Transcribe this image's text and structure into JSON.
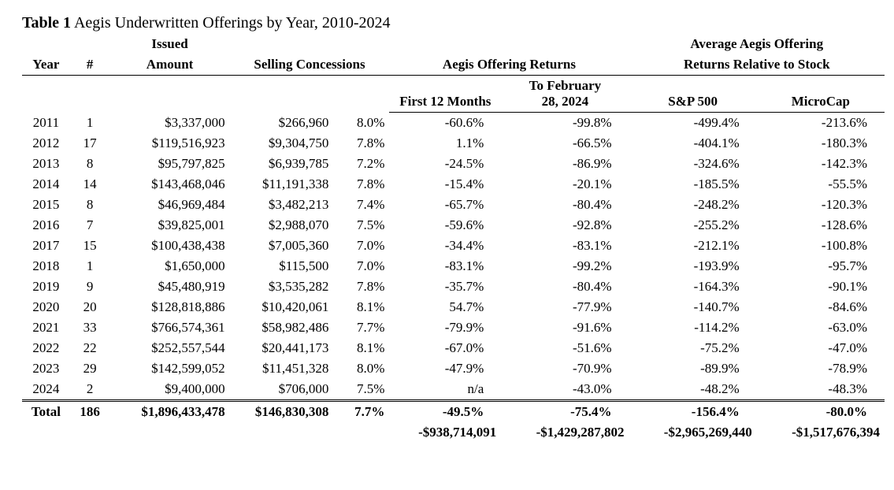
{
  "title_bold": "Table 1",
  "title_rest": "Aegis Underwritten Offerings by Year, 2010-2024",
  "headers": {
    "year": "Year",
    "num": "#",
    "issued": "Issued",
    "amount": "Amount",
    "selling_conc": "Selling Concessions",
    "aegis_returns": "Aegis Offering Returns",
    "first12": "First 12 Months",
    "tofeb_l1": "To February",
    "tofeb_l2": "28, 2024",
    "avg_rel_l1": "Average Aegis Offering",
    "avg_rel_l2": "Returns  Relative to Stock",
    "sp500": "S&P 500",
    "microcap": "MicroCap"
  },
  "rows": [
    {
      "year": "2011",
      "n": "1",
      "amount": "$3,337,000",
      "conc": "$266,960",
      "pct": "8.0%",
      "r12": "-60.6%",
      "rto": "-99.8%",
      "sp": "-499.4%",
      "mc": "-213.6%"
    },
    {
      "year": "2012",
      "n": "17",
      "amount": "$119,516,923",
      "conc": "$9,304,750",
      "pct": "7.8%",
      "r12": "1.1%",
      "rto": "-66.5%",
      "sp": "-404.1%",
      "mc": "-180.3%"
    },
    {
      "year": "2013",
      "n": "8",
      "amount": "$95,797,825",
      "conc": "$6,939,785",
      "pct": "7.2%",
      "r12": "-24.5%",
      "rto": "-86.9%",
      "sp": "-324.6%",
      "mc": "-142.3%"
    },
    {
      "year": "2014",
      "n": "14",
      "amount": "$143,468,046",
      "conc": "$11,191,338",
      "pct": "7.8%",
      "r12": "-15.4%",
      "rto": "-20.1%",
      "sp": "-185.5%",
      "mc": "-55.5%"
    },
    {
      "year": "2015",
      "n": "8",
      "amount": "$46,969,484",
      "conc": "$3,482,213",
      "pct": "7.4%",
      "r12": "-65.7%",
      "rto": "-80.4%",
      "sp": "-248.2%",
      "mc": "-120.3%"
    },
    {
      "year": "2016",
      "n": "7",
      "amount": "$39,825,001",
      "conc": "$2,988,070",
      "pct": "7.5%",
      "r12": "-59.6%",
      "rto": "-92.8%",
      "sp": "-255.2%",
      "mc": "-128.6%"
    },
    {
      "year": "2017",
      "n": "15",
      "amount": "$100,438,438",
      "conc": "$7,005,360",
      "pct": "7.0%",
      "r12": "-34.4%",
      "rto": "-83.1%",
      "sp": "-212.1%",
      "mc": "-100.8%"
    },
    {
      "year": "2018",
      "n": "1",
      "amount": "$1,650,000",
      "conc": "$115,500",
      "pct": "7.0%",
      "r12": "-83.1%",
      "rto": "-99.2%",
      "sp": "-193.9%",
      "mc": "-95.7%"
    },
    {
      "year": "2019",
      "n": "9",
      "amount": "$45,480,919",
      "conc": "$3,535,282",
      "pct": "7.8%",
      "r12": "-35.7%",
      "rto": "-80.4%",
      "sp": "-164.3%",
      "mc": "-90.1%"
    },
    {
      "year": "2020",
      "n": "20",
      "amount": "$128,818,886",
      "conc": "$10,420,061",
      "pct": "8.1%",
      "r12": "54.7%",
      "rto": "-77.9%",
      "sp": "-140.7%",
      "mc": "-84.6%"
    },
    {
      "year": "2021",
      "n": "33",
      "amount": "$766,574,361",
      "conc": "$58,982,486",
      "pct": "7.7%",
      "r12": "-79.9%",
      "rto": "-91.6%",
      "sp": "-114.2%",
      "mc": "-63.0%"
    },
    {
      "year": "2022",
      "n": "22",
      "amount": "$252,557,544",
      "conc": "$20,441,173",
      "pct": "8.1%",
      "r12": "-67.0%",
      "rto": "-51.6%",
      "sp": "-75.2%",
      "mc": "-47.0%"
    },
    {
      "year": "2023",
      "n": "29",
      "amount": "$142,599,052",
      "conc": "$11,451,328",
      "pct": "8.0%",
      "r12": "-47.9%",
      "rto": "-70.9%",
      "sp": "-89.9%",
      "mc": "-78.9%"
    },
    {
      "year": "2024",
      "n": "2",
      "amount": "$9,400,000",
      "conc": "$706,000",
      "pct": "7.5%",
      "r12": "n/a",
      "rto": "-43.0%",
      "sp": "-48.2%",
      "mc": "-48.3%"
    }
  ],
  "totals": {
    "label": "Total",
    "n": "186",
    "amount": "$1,896,433,478",
    "conc": "$146,830,308",
    "pct": "7.7%",
    "r12": "-49.5%",
    "rto": "-75.4%",
    "sp": "-156.4%",
    "mc": "-80.0%"
  },
  "dollar_totals": {
    "r12": "-$938,714,091",
    "rto": "-$1,429,287,802",
    "sp": "-$2,965,269,440",
    "mc": "-$1,517,676,394"
  }
}
